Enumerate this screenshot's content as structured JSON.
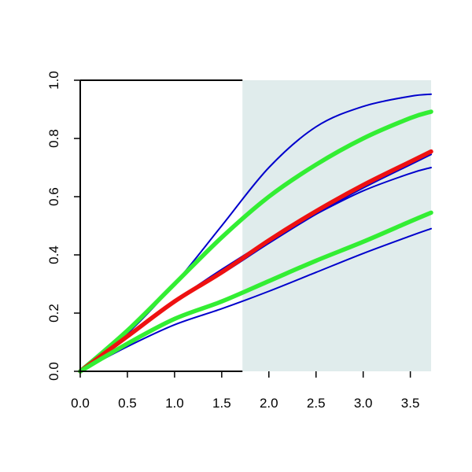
{
  "chart_data": {
    "type": "line",
    "title": "",
    "xlabel": "",
    "ylabel": "",
    "xlim": [
      0.0,
      3.72
    ],
    "ylim": [
      0.0,
      1.0
    ],
    "xticks": [
      "0.0",
      "0.5",
      "1.0",
      "1.5",
      "2.0",
      "2.5",
      "3.0",
      "3.5"
    ],
    "yticks": [
      "0.0",
      "0.2",
      "0.4",
      "0.6",
      "0.8",
      "1.0"
    ],
    "grid": false,
    "legend": "none",
    "shaded_region": {
      "x_from": 1.72,
      "x_to": 3.72,
      "color": "#e0ecec"
    },
    "x": [
      0.0,
      0.5,
      1.0,
      1.5,
      2.0,
      2.5,
      3.0,
      3.5,
      3.72
    ],
    "series": [
      {
        "color": "#0000cc",
        "weight": "thin",
        "values": [
          0.0,
          0.13,
          0.3,
          0.5,
          0.7,
          0.84,
          0.91,
          0.945,
          0.952
        ]
      },
      {
        "color": "#33ee33",
        "weight": "thick",
        "values": [
          0.0,
          0.14,
          0.3,
          0.46,
          0.6,
          0.71,
          0.8,
          0.87,
          0.892
        ]
      },
      {
        "color": "#ee1111",
        "weight": "thick",
        "values": [
          0.0,
          0.12,
          0.24,
          0.34,
          0.45,
          0.55,
          0.64,
          0.72,
          0.755
        ]
      },
      {
        "color": "#0000cc",
        "weight": "thin",
        "values": [
          0.0,
          0.12,
          0.24,
          0.35,
          0.45,
          0.54,
          0.62,
          0.68,
          0.7
        ]
      },
      {
        "color": "#0000cc",
        "weight": "thin",
        "values": [
          0.0,
          0.12,
          0.24,
          0.335,
          0.44,
          0.54,
          0.63,
          0.71,
          0.745
        ]
      },
      {
        "color": "#33ee33",
        "weight": "thick",
        "values": [
          0.0,
          0.095,
          0.18,
          0.24,
          0.31,
          0.38,
          0.445,
          0.515,
          0.545
        ]
      },
      {
        "color": "#0000cc",
        "weight": "thin",
        "values": [
          0.0,
          0.085,
          0.16,
          0.215,
          0.275,
          0.34,
          0.405,
          0.465,
          0.49
        ]
      }
    ]
  }
}
